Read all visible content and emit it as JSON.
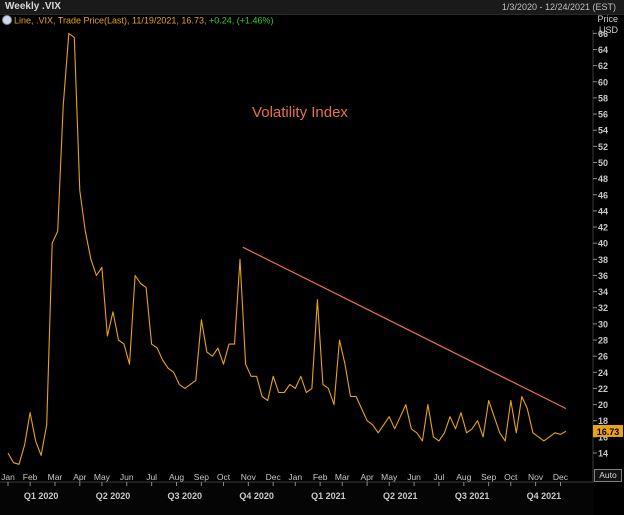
{
  "window": {
    "title": "Weekly .VIX",
    "date_range": "1/3/2020 - 12/24/2021 (EST)",
    "price_header": "Price",
    "currency": "USD",
    "auto_button": "Auto"
  },
  "legend": {
    "prefix": "Line, .VIX, Trade Price(Last), 11/19/2021, 16.73,",
    "change": "+0.24, (+1.46%)"
  },
  "colors": {
    "background": "#000000",
    "line": "#e8a317",
    "trendline": "#e8704a",
    "annotation": "#e8704a",
    "legend_text": "#e8a317",
    "change_text": "#33cc33",
    "axis_text": "#c8c8c8",
    "last_price_tag": "#e8a317"
  },
  "chart_data": {
    "type": "line",
    "title": "Volatility Index",
    "xlabel": "",
    "ylabel": "Price USD",
    "ylim": [
      12,
      68
    ],
    "y_ticks": [
      14,
      16,
      18,
      20,
      22,
      24,
      26,
      28,
      30,
      32,
      34,
      36,
      38,
      40,
      42,
      44,
      46,
      48,
      50,
      52,
      54,
      56,
      58,
      60,
      62,
      64,
      66
    ],
    "grid": false,
    "last_value": "16.73",
    "months": [
      {
        "label": "Jan",
        "week": 0
      },
      {
        "label": "Feb",
        "week": 4
      },
      {
        "label": "Mar",
        "week": 8.5
      },
      {
        "label": "Apr",
        "week": 13
      },
      {
        "label": "May",
        "week": 17
      },
      {
        "label": "Jun",
        "week": 21.5
      },
      {
        "label": "Jul",
        "week": 26
      },
      {
        "label": "Aug",
        "week": 30.5
      },
      {
        "label": "Sep",
        "week": 35
      },
      {
        "label": "Oct",
        "week": 39
      },
      {
        "label": "Nov",
        "week": 43.5
      },
      {
        "label": "Dec",
        "week": 48
      },
      {
        "label": "Jan",
        "week": 52
      },
      {
        "label": "Feb",
        "week": 56.5
      },
      {
        "label": "Mar",
        "week": 60.5
      },
      {
        "label": "Apr",
        "week": 65
      },
      {
        "label": "May",
        "week": 69
      },
      {
        "label": "Jun",
        "week": 73.5
      },
      {
        "label": "Jul",
        "week": 78
      },
      {
        "label": "Aug",
        "week": 82.5
      },
      {
        "label": "Sep",
        "week": 87
      },
      {
        "label": "Oct",
        "week": 91
      },
      {
        "label": "Nov",
        "week": 95.5
      },
      {
        "label": "Dec",
        "week": 100
      }
    ],
    "quarters": [
      {
        "label": "Q1 2020",
        "week": 6
      },
      {
        "label": "Q2 2020",
        "week": 19
      },
      {
        "label": "Q3 2020",
        "week": 32
      },
      {
        "label": "Q4 2020",
        "week": 45
      },
      {
        "label": "Q1 2021",
        "week": 58
      },
      {
        "label": "Q2 2021",
        "week": 71
      },
      {
        "label": "Q3 2021",
        "week": 84
      },
      {
        "label": "Q4 2021",
        "week": 97
      }
    ],
    "series": [
      {
        "values": [
          14.0,
          12.8,
          12.6,
          15.0,
          19.0,
          15.5,
          13.7,
          17.5,
          40.0,
          41.5,
          57.0,
          66.0,
          65.5,
          46.5,
          41.5,
          38.0,
          36.0,
          37.0,
          28.5,
          31.5,
          28.0,
          27.5,
          25.0,
          36.0,
          35.0,
          34.5,
          27.5,
          27.0,
          25.5,
          24.5,
          24.0,
          22.5,
          22.0,
          22.5,
          23.0,
          30.5,
          26.5,
          26.0,
          27.0,
          25.0,
          27.5,
          27.5,
          38.0,
          25.0,
          23.5,
          23.5,
          21.0,
          20.5,
          23.5,
          21.5,
          21.5,
          22.5,
          22.0,
          23.5,
          21.5,
          22.0,
          33.0,
          22.5,
          22.0,
          20.0,
          28.0,
          25.0,
          21.0,
          21.0,
          19.5,
          18.0,
          17.5,
          16.5,
          17.5,
          18.5,
          17.0,
          18.5,
          20.0,
          17.0,
          16.5,
          15.5,
          20.0,
          16.0,
          15.5,
          16.5,
          18.5,
          17.0,
          19.0,
          16.5,
          17.0,
          18.0,
          16.0,
          20.5,
          18.5,
          16.5,
          15.5,
          20.5,
          16.5,
          21.0,
          19.5,
          16.5,
          16.0,
          15.5,
          16.0,
          16.5,
          16.3,
          16.7
        ]
      }
    ],
    "trendline": {
      "start": {
        "week": 42.5,
        "value": 39.5
      },
      "end": {
        "week": 101,
        "value": 19.5
      }
    }
  }
}
